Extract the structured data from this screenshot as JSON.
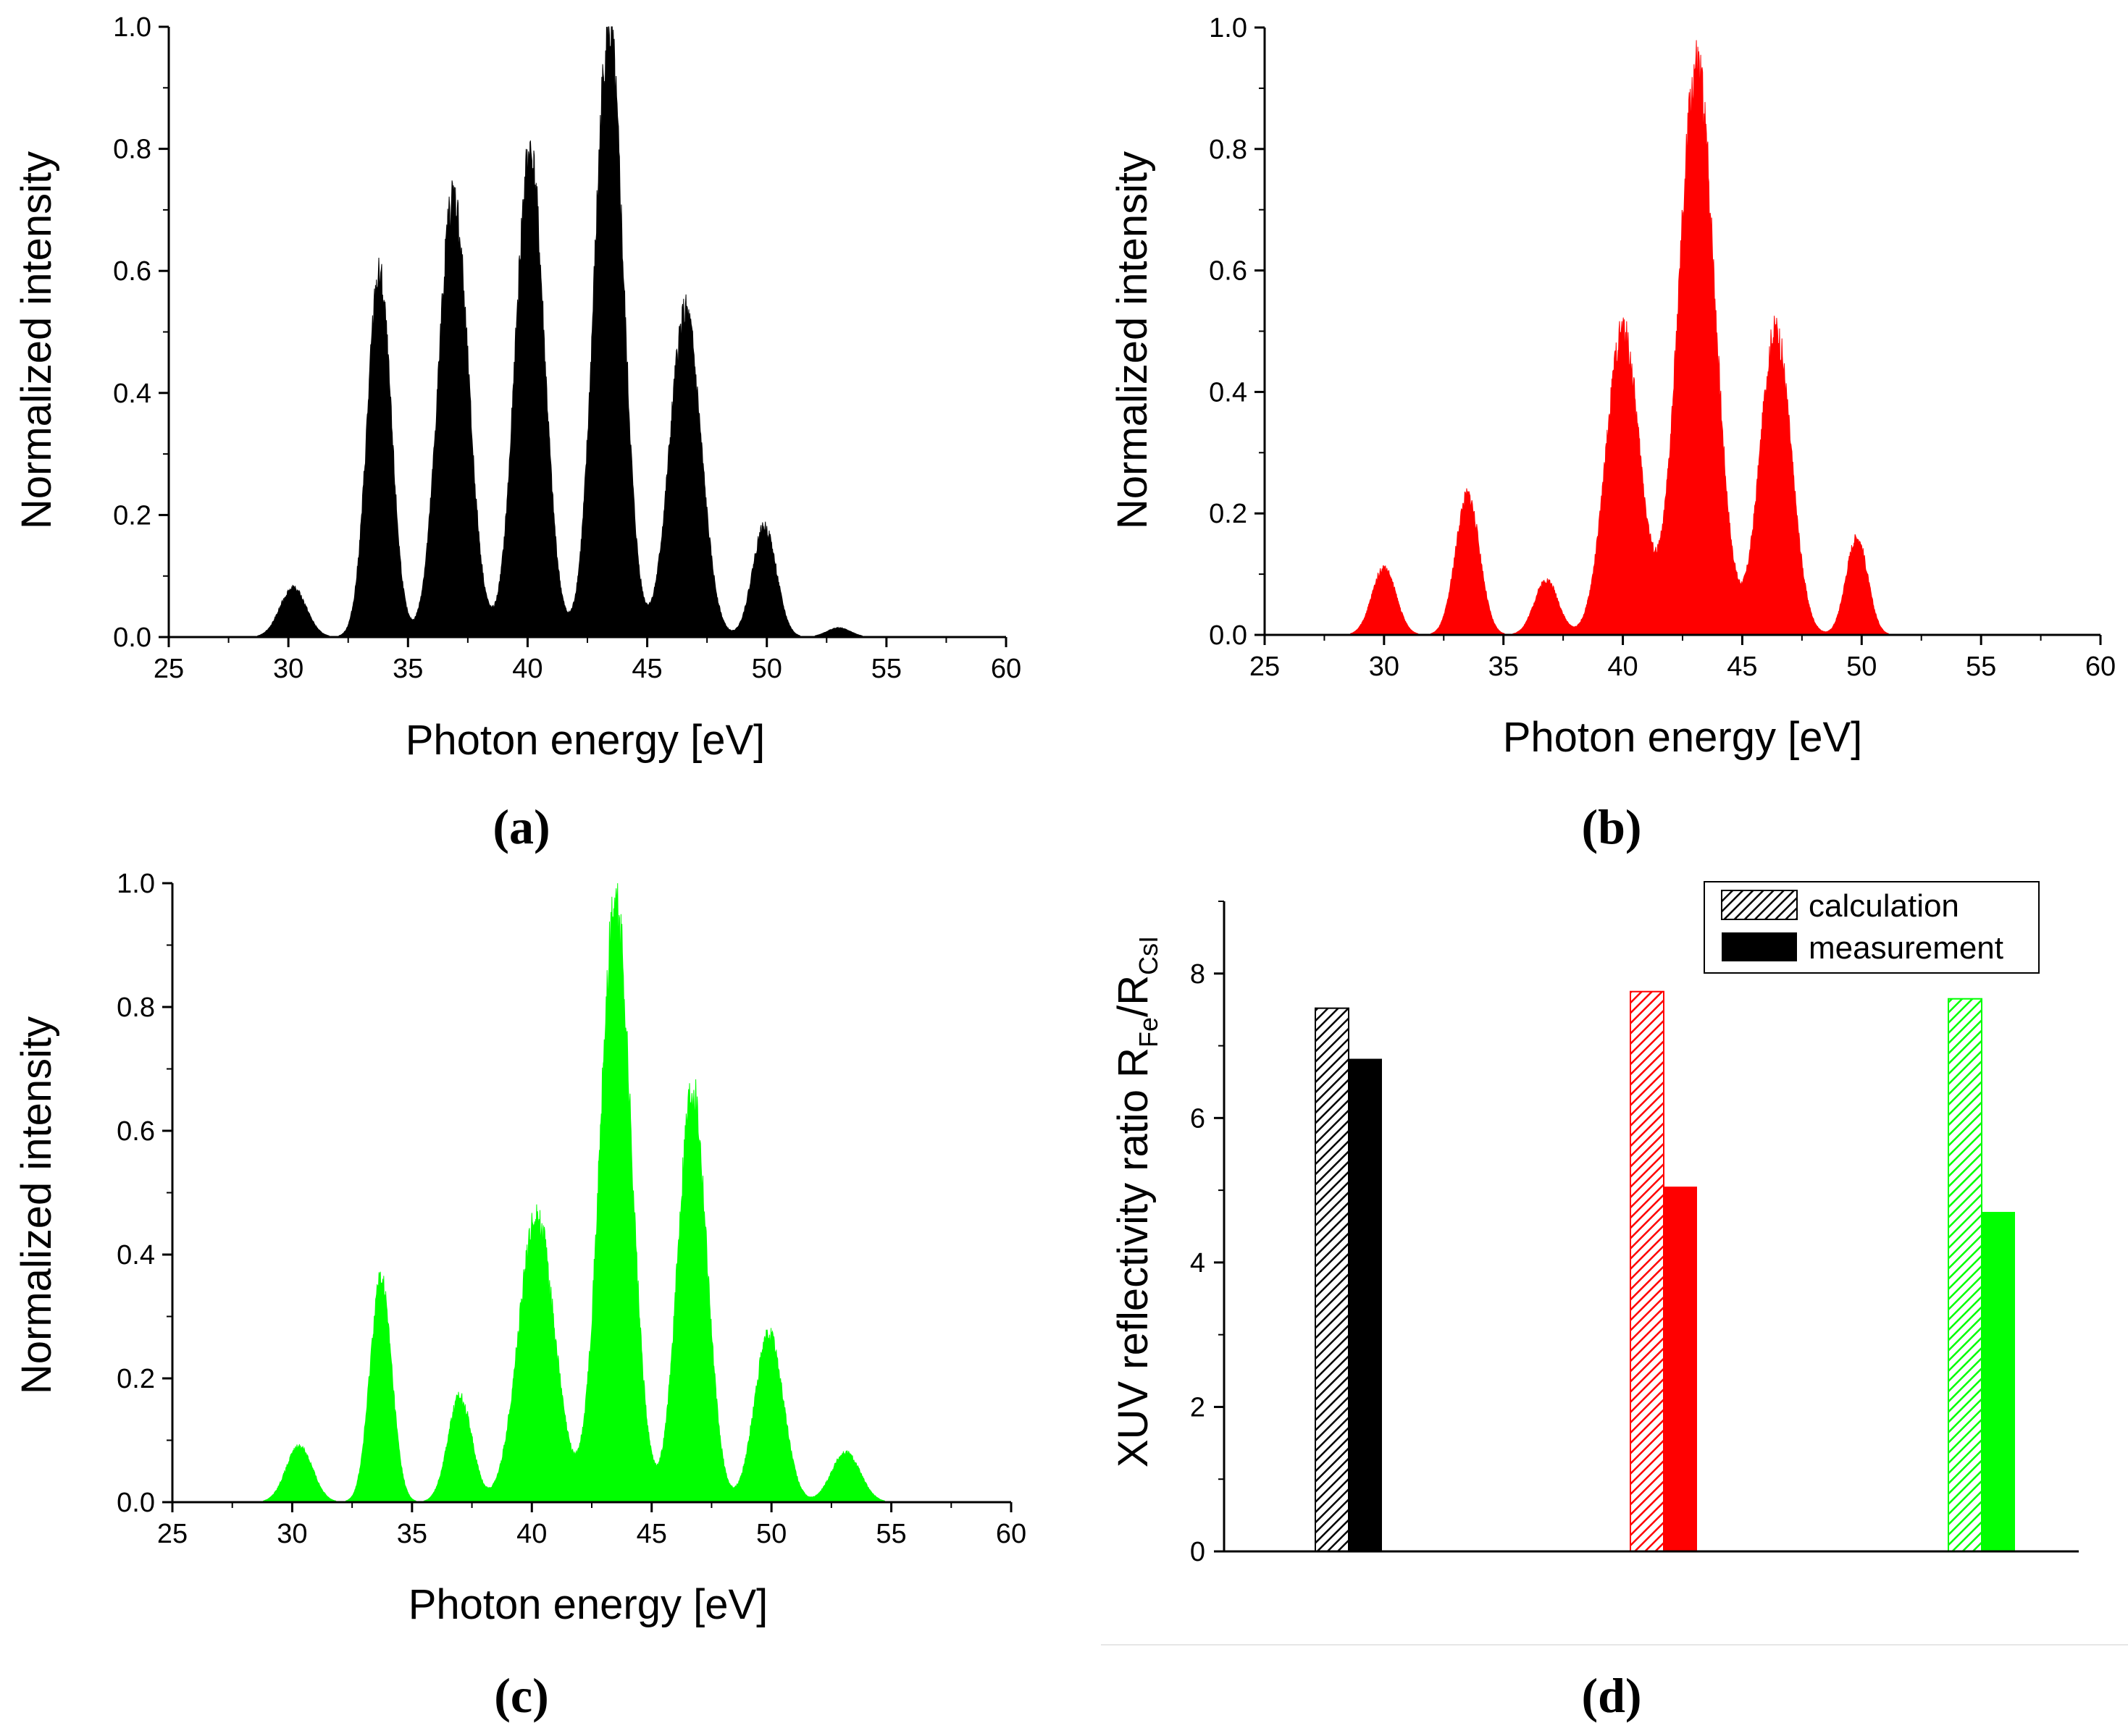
{
  "figure": {
    "panels": [
      "(a)",
      "(b)",
      "(c)",
      "(d)"
    ]
  },
  "chart_data": [
    {
      "id": "a",
      "type": "area",
      "panel_label": "(a)",
      "xlabel": "Photon energy [eV]",
      "ylabel": "Normalized intensity",
      "xlim": [
        25,
        60
      ],
      "ylim": [
        0,
        1.0
      ],
      "xticks": [
        "25",
        "30",
        "35",
        "40",
        "45",
        "50",
        "55",
        "60"
      ],
      "yticks": [
        "0.0",
        "0.2",
        "0.4",
        "0.6",
        "0.8",
        "1.0"
      ],
      "color": "#000000",
      "peaks": [
        {
          "center": 30.2,
          "height": 0.08,
          "width": 0.55
        },
        {
          "center": 33.8,
          "height": 0.59,
          "width": 0.5
        },
        {
          "center": 36.9,
          "height": 0.72,
          "width": 0.62
        },
        {
          "center": 40.1,
          "height": 0.79,
          "width": 0.6
        },
        {
          "center": 43.4,
          "height": 0.99,
          "width": 0.6
        },
        {
          "center": 46.6,
          "height": 0.53,
          "width": 0.65
        },
        {
          "center": 49.9,
          "height": 0.18,
          "width": 0.5
        },
        {
          "center": 53.0,
          "height": 0.015,
          "width": 0.5
        }
      ]
    },
    {
      "id": "b",
      "type": "area",
      "panel_label": "(b)",
      "xlabel": "Photon energy [eV]",
      "ylabel": "Normalized intensity",
      "xlim": [
        25,
        60
      ],
      "ylim": [
        0,
        1.0
      ],
      "xticks": [
        "25",
        "30",
        "35",
        "40",
        "45",
        "50",
        "55",
        "60"
      ],
      "yticks": [
        "0.0",
        "0.2",
        "0.4",
        "0.6",
        "0.8",
        "1.0"
      ],
      "color": "#ff0000",
      "peaks": [
        {
          "center": 30.0,
          "height": 0.11,
          "width": 0.5
        },
        {
          "center": 33.5,
          "height": 0.23,
          "width": 0.5
        },
        {
          "center": 36.8,
          "height": 0.09,
          "width": 0.5
        },
        {
          "center": 40.0,
          "height": 0.5,
          "width": 0.7
        },
        {
          "center": 43.1,
          "height": 0.93,
          "width": 0.75
        },
        {
          "center": 46.4,
          "height": 0.5,
          "width": 0.65
        },
        {
          "center": 49.8,
          "height": 0.16,
          "width": 0.45
        }
      ]
    },
    {
      "id": "c",
      "type": "area",
      "panel_label": "(c)",
      "xlabel": "Photon energy [eV]",
      "ylabel": "Normalized intensity",
      "xlim": [
        25,
        60
      ],
      "ylim": [
        0,
        1.0
      ],
      "xticks": [
        "25",
        "30",
        "35",
        "40",
        "45",
        "50",
        "55",
        "60"
      ],
      "yticks": [
        "0.0",
        "0.2",
        "0.4",
        "0.6",
        "0.8",
        "1.0"
      ],
      "color": "#00ff00",
      "peaks": [
        {
          "center": 30.3,
          "height": 0.09,
          "width": 0.55
        },
        {
          "center": 33.7,
          "height": 0.36,
          "width": 0.45
        },
        {
          "center": 37.0,
          "height": 0.17,
          "width": 0.5
        },
        {
          "center": 40.2,
          "height": 0.46,
          "width": 0.75
        },
        {
          "center": 43.5,
          "height": 0.96,
          "width": 0.65
        },
        {
          "center": 46.7,
          "height": 0.67,
          "width": 0.6
        },
        {
          "center": 49.9,
          "height": 0.27,
          "width": 0.6
        },
        {
          "center": 53.1,
          "height": 0.08,
          "width": 0.6
        }
      ]
    },
    {
      "id": "d",
      "type": "bar",
      "panel_label": "(d)",
      "ylabel": "XUV reflectivity ratio R",
      "ylabel_sub1": "Fe",
      "ylabel_mid": "/R",
      "ylabel_sub2": "CsI",
      "ylim": [
        0,
        9
      ],
      "yticks": [
        "0",
        "2",
        "4",
        "6",
        "8"
      ],
      "legend": {
        "placement": "top-right",
        "entries": [
          "calculation",
          "measurement"
        ]
      },
      "groups": [
        {
          "color": "#000000",
          "calculation": 7.52,
          "measurement": 6.82
        },
        {
          "color": "#ff0000",
          "calculation": 7.75,
          "measurement": 5.05
        },
        {
          "color": "#00ff00",
          "calculation": 7.65,
          "measurement": 4.7
        }
      ]
    }
  ]
}
